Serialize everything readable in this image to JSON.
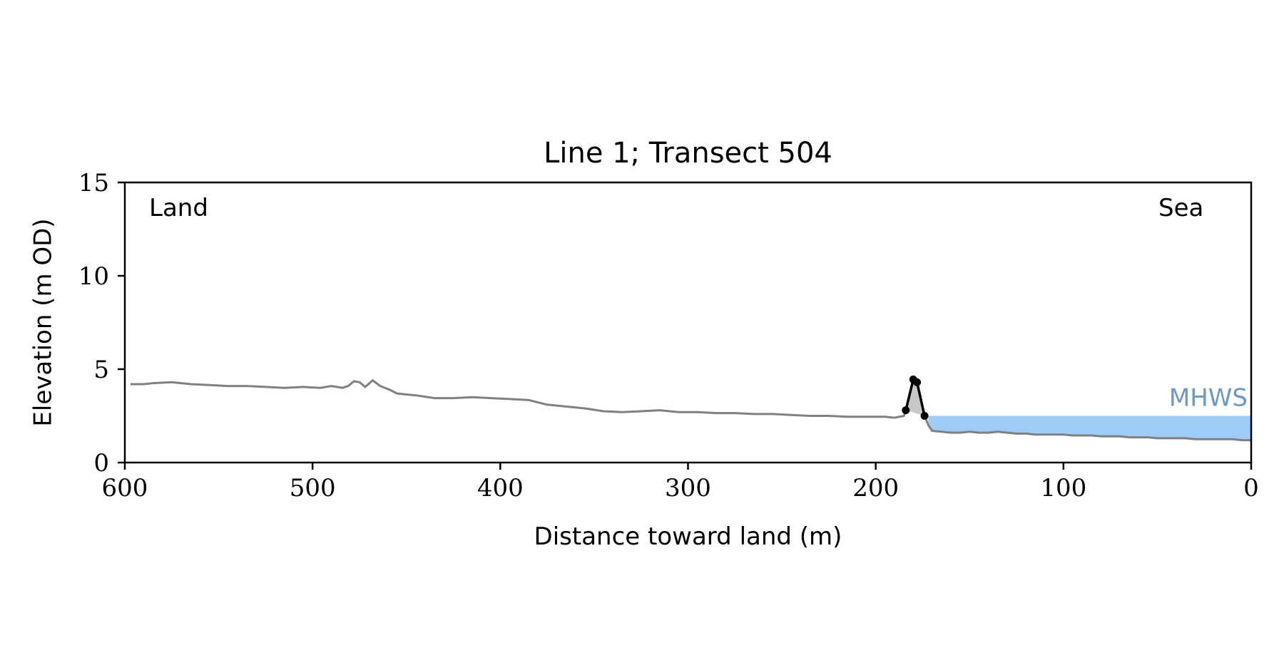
{
  "chart_data": {
    "type": "line",
    "title": "Line 1; Transect 504",
    "xlabel": "Distance toward land (m)",
    "ylabel": "Elevation (m OD)",
    "xlim": [
      600,
      0
    ],
    "x_reversed": true,
    "ylim": [
      0,
      15
    ],
    "x_ticks": [
      600,
      500,
      400,
      300,
      200,
      100,
      0
    ],
    "y_ticks": [
      0,
      5,
      10,
      15
    ],
    "grid": false,
    "annotations": {
      "land_label": "Land",
      "sea_label": "Sea",
      "mhws_label": "MHWS"
    },
    "mhws_level": 2.5,
    "mhws_x_range": [
      172,
      0
    ],
    "series": [
      {
        "role": "elevation-profile",
        "color": "#808080",
        "points": [
          [
            597,
            4.2
          ],
          [
            590,
            4.2
          ],
          [
            585,
            4.25
          ],
          [
            575,
            4.3
          ],
          [
            565,
            4.2
          ],
          [
            555,
            4.15
          ],
          [
            545,
            4.1
          ],
          [
            535,
            4.1
          ],
          [
            525,
            4.05
          ],
          [
            515,
            4.0
          ],
          [
            505,
            4.05
          ],
          [
            496,
            4.0
          ],
          [
            490,
            4.1
          ],
          [
            484,
            4.0
          ],
          [
            481,
            4.1
          ],
          [
            478,
            4.35
          ],
          [
            475,
            4.3
          ],
          [
            472,
            4.05
          ],
          [
            468,
            4.4
          ],
          [
            464,
            4.1
          ],
          [
            459,
            3.9
          ],
          [
            455,
            3.7
          ],
          [
            445,
            3.6
          ],
          [
            435,
            3.45
          ],
          [
            425,
            3.45
          ],
          [
            415,
            3.5
          ],
          [
            405,
            3.45
          ],
          [
            395,
            3.4
          ],
          [
            385,
            3.35
          ],
          [
            375,
            3.1
          ],
          [
            365,
            3.0
          ],
          [
            355,
            2.9
          ],
          [
            345,
            2.75
          ],
          [
            335,
            2.7
          ],
          [
            325,
            2.75
          ],
          [
            315,
            2.8
          ],
          [
            305,
            2.7
          ],
          [
            295,
            2.7
          ],
          [
            285,
            2.65
          ],
          [
            275,
            2.65
          ],
          [
            265,
            2.6
          ],
          [
            255,
            2.6
          ],
          [
            245,
            2.55
          ],
          [
            235,
            2.5
          ],
          [
            225,
            2.5
          ],
          [
            215,
            2.45
          ],
          [
            205,
            2.45
          ],
          [
            195,
            2.45
          ],
          [
            190,
            2.4
          ],
          [
            185,
            2.5
          ],
          [
            184,
            2.75
          ],
          [
            180,
            4.45
          ],
          [
            178,
            4.3
          ],
          [
            174,
            2.5
          ],
          [
            172,
            2.0
          ],
          [
            170,
            1.7
          ],
          [
            165,
            1.65
          ],
          [
            160,
            1.6
          ],
          [
            155,
            1.6
          ],
          [
            150,
            1.65
          ],
          [
            145,
            1.6
          ],
          [
            140,
            1.6
          ],
          [
            135,
            1.65
          ],
          [
            130,
            1.6
          ],
          [
            125,
            1.55
          ],
          [
            120,
            1.55
          ],
          [
            115,
            1.5
          ],
          [
            110,
            1.5
          ],
          [
            105,
            1.5
          ],
          [
            100,
            1.5
          ],
          [
            95,
            1.45
          ],
          [
            90,
            1.45
          ],
          [
            85,
            1.45
          ],
          [
            80,
            1.4
          ],
          [
            75,
            1.4
          ],
          [
            70,
            1.4
          ],
          [
            65,
            1.35
          ],
          [
            60,
            1.35
          ],
          [
            55,
            1.35
          ],
          [
            50,
            1.3
          ],
          [
            45,
            1.3
          ],
          [
            40,
            1.3
          ],
          [
            35,
            1.3
          ],
          [
            30,
            1.25
          ],
          [
            25,
            1.25
          ],
          [
            20,
            1.25
          ],
          [
            15,
            1.25
          ],
          [
            10,
            1.25
          ],
          [
            5,
            1.2
          ],
          [
            0,
            1.2
          ]
        ]
      },
      {
        "role": "dune-feature",
        "color": "#000000",
        "fill": "#c8c8c8",
        "points": [
          [
            184,
            2.8
          ],
          [
            180,
            4.45
          ],
          [
            178,
            4.3
          ],
          [
            174,
            2.5
          ]
        ]
      }
    ],
    "colors": {
      "mhws_fill": "#9ecbf7",
      "mhws_text": "#6f98c2",
      "dune_fill": "#c8c8c8",
      "profile_line": "#808080",
      "dune_line": "#000000"
    }
  }
}
